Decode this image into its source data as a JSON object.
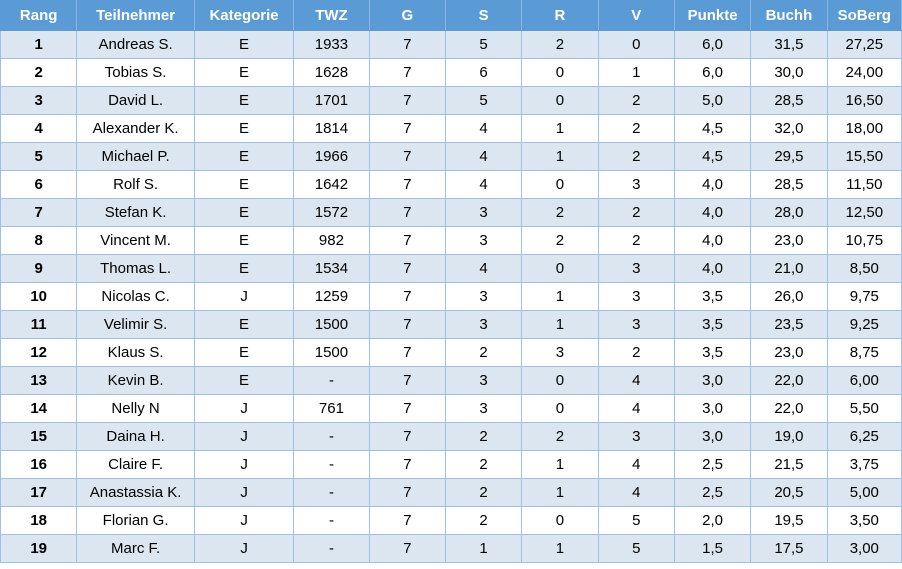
{
  "headers": [
    "Rang",
    "Teilnehmer",
    "Kategorie",
    "TWZ",
    "G",
    "S",
    "R",
    "V",
    "Punkte",
    "Buchh",
    "SoBerg"
  ],
  "rows": [
    [
      "1",
      "Andreas S.",
      "E",
      "1933",
      "7",
      "5",
      "2",
      "0",
      "6,0",
      "31,5",
      "27,25"
    ],
    [
      "2",
      "Tobias S.",
      "E",
      "1628",
      "7",
      "6",
      "0",
      "1",
      "6,0",
      "30,0",
      "24,00"
    ],
    [
      "3",
      "David L.",
      "E",
      "1701",
      "7",
      "5",
      "0",
      "2",
      "5,0",
      "28,5",
      "16,50"
    ],
    [
      "4",
      "Alexander K.",
      "E",
      "1814",
      "7",
      "4",
      "1",
      "2",
      "4,5",
      "32,0",
      "18,00"
    ],
    [
      "5",
      "Michael P.",
      "E",
      "1966",
      "7",
      "4",
      "1",
      "2",
      "4,5",
      "29,5",
      "15,50"
    ],
    [
      "6",
      "Rolf S.",
      "E",
      "1642",
      "7",
      "4",
      "0",
      "3",
      "4,0",
      "28,5",
      "11,50"
    ],
    [
      "7",
      "Stefan K.",
      "E",
      "1572",
      "7",
      "3",
      "2",
      "2",
      "4,0",
      "28,0",
      "12,50"
    ],
    [
      "8",
      "Vincent M.",
      "E",
      "982",
      "7",
      "3",
      "2",
      "2",
      "4,0",
      "23,0",
      "10,75"
    ],
    [
      "9",
      "Thomas L.",
      "E",
      "1534",
      "7",
      "4",
      "0",
      "3",
      "4,0",
      "21,0",
      "8,50"
    ],
    [
      "10",
      "Nicolas C.",
      "J",
      "1259",
      "7",
      "3",
      "1",
      "3",
      "3,5",
      "26,0",
      "9,75"
    ],
    [
      "11",
      "Velimir S.",
      "E",
      "1500",
      "7",
      "3",
      "1",
      "3",
      "3,5",
      "23,5",
      "9,25"
    ],
    [
      "12",
      "Klaus S.",
      "E",
      "1500",
      "7",
      "2",
      "3",
      "2",
      "3,5",
      "23,0",
      "8,75"
    ],
    [
      "13",
      "Kevin B.",
      "E",
      "-",
      "7",
      "3",
      "0",
      "4",
      "3,0",
      "22,0",
      "6,00"
    ],
    [
      "14",
      "Nelly N",
      "J",
      "761",
      "7",
      "3",
      "0",
      "4",
      "3,0",
      "22,0",
      "5,50"
    ],
    [
      "15",
      "Daina H.",
      "J",
      "-",
      "7",
      "2",
      "2",
      "3",
      "3,0",
      "19,0",
      "6,25"
    ],
    [
      "16",
      "Claire F.",
      "J",
      "-",
      "7",
      "2",
      "1",
      "4",
      "2,5",
      "21,5",
      "3,75"
    ],
    [
      "17",
      "Anastassia K.",
      "J",
      "-",
      "7",
      "2",
      "1",
      "4",
      "2,5",
      "20,5",
      "5,00"
    ],
    [
      "18",
      "Florian G.",
      "J",
      "-",
      "7",
      "2",
      "0",
      "5",
      "2,0",
      "19,5",
      "3,50"
    ],
    [
      "19",
      "Marc F.",
      "J",
      "-",
      "7",
      "1",
      "1",
      "5",
      "1,5",
      "17,5",
      "3,00"
    ]
  ]
}
